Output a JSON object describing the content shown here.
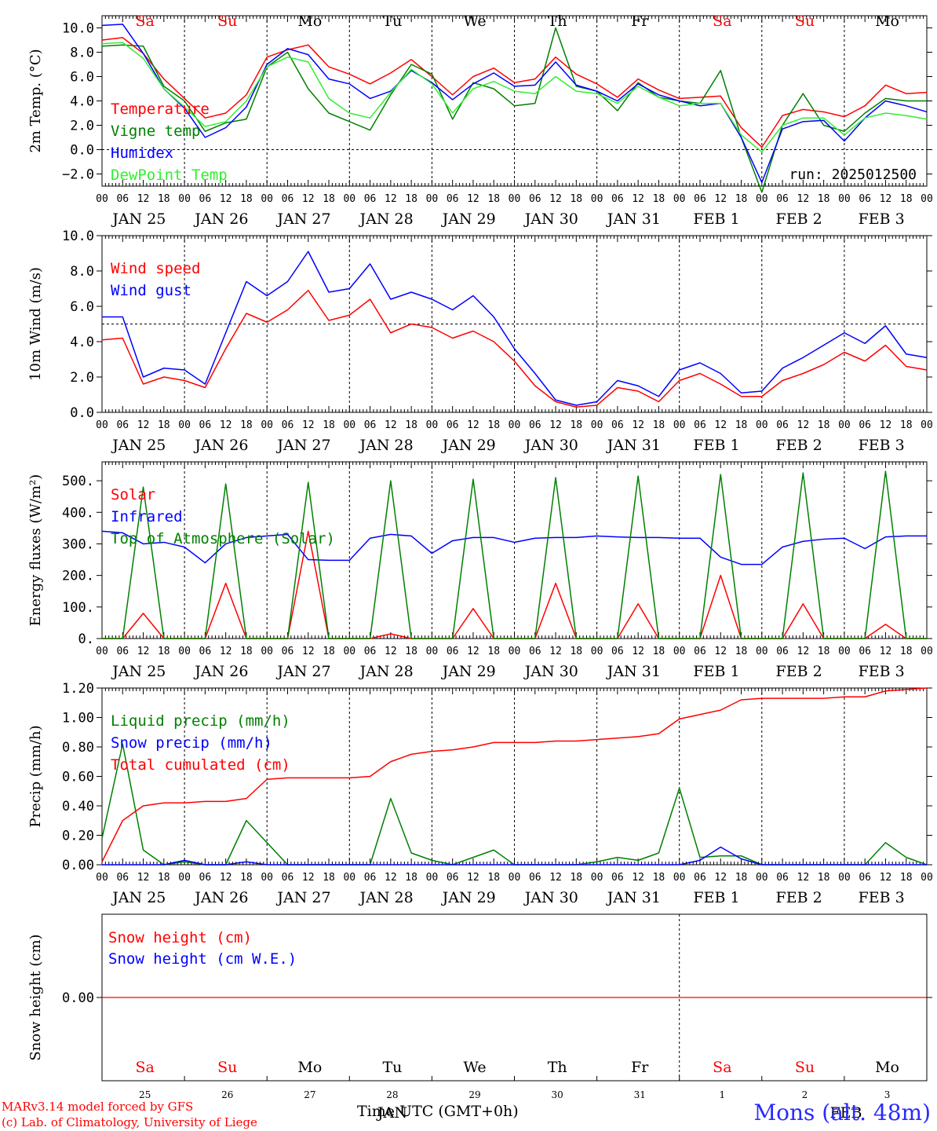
{
  "chart_data": [
    {
      "type": "line",
      "ylabel": "2m Temp. (°C)",
      "ylim": [
        -3,
        11
      ],
      "yticks": [
        "−2.0",
        "0.0",
        "2.0",
        "4.0",
        "6.0",
        "8.0",
        "10.0"
      ],
      "ytick_values": [
        -2,
        0,
        2,
        4,
        6,
        8,
        10
      ],
      "ref_line": 0,
      "annotation": "run: 2025012500",
      "x_hours": [
        0,
        6,
        12,
        18,
        24,
        30,
        36,
        42,
        48,
        54,
        60,
        66,
        72,
        78,
        84,
        90,
        96,
        102,
        108,
        114,
        120,
        126,
        132,
        138,
        144,
        150,
        156,
        162,
        168,
        174,
        180,
        186,
        192,
        198,
        204,
        210,
        216,
        222,
        228,
        234,
        240
      ],
      "series": [
        {
          "name": "Temperature",
          "color": "#ff0000",
          "values": [
            9.0,
            9.2,
            7.9,
            5.8,
            4.2,
            2.6,
            3.0,
            4.5,
            7.6,
            8.2,
            8.6,
            6.8,
            6.2,
            5.4,
            6.3,
            7.4,
            6.0,
            4.5,
            6.0,
            6.7,
            5.5,
            5.8,
            7.6,
            6.2,
            5.4,
            4.3,
            5.8,
            4.9,
            4.2,
            4.3,
            4.4,
            1.8,
            0.2,
            2.8,
            3.3,
            3.1,
            2.7,
            3.6,
            5.3,
            4.6,
            4.7
          ]
        },
        {
          "name": "Vigne temp",
          "color": "#008000",
          "values": [
            8.5,
            8.6,
            8.5,
            5.2,
            4.0,
            1.5,
            2.2,
            2.5,
            6.8,
            8.0,
            5.0,
            3.0,
            2.3,
            1.6,
            4.5,
            7.0,
            6.2,
            2.5,
            5.5,
            5.0,
            3.6,
            3.8,
            10.0,
            5.2,
            4.8,
            3.2,
            5.5,
            4.3,
            4.0,
            3.8,
            6.5,
            1.0,
            -3.5,
            2.0,
            4.6,
            2.0,
            1.5,
            3.0,
            4.2,
            4.0,
            4.0
          ]
        },
        {
          "name": "Humidex",
          "color": "#0000ff",
          "values": [
            10.2,
            10.3,
            7.9,
            5.0,
            3.4,
            1.0,
            1.8,
            3.5,
            7.0,
            8.3,
            7.8,
            5.8,
            5.4,
            4.2,
            4.8,
            6.5,
            5.5,
            4.1,
            5.4,
            6.3,
            5.2,
            5.3,
            7.2,
            5.3,
            4.8,
            4.0,
            5.4,
            4.5,
            4.0,
            3.6,
            3.8,
            1.0,
            -2.7,
            1.7,
            2.3,
            2.4,
            0.7,
            2.6,
            4.0,
            3.6,
            3.1
          ]
        },
        {
          "name": "DewPoint Temp",
          "color": "#33ee33",
          "values": [
            8.7,
            8.8,
            7.5,
            5.0,
            3.5,
            1.9,
            2.3,
            4.0,
            6.8,
            7.6,
            7.2,
            4.2,
            3.0,
            2.6,
            4.7,
            6.6,
            5.4,
            3.0,
            5.0,
            5.6,
            4.8,
            4.6,
            6.0,
            4.8,
            4.6,
            3.8,
            5.2,
            4.3,
            3.6,
            3.8,
            3.8,
            1.2,
            -0.2,
            2.0,
            2.6,
            2.6,
            1.2,
            2.6,
            3.0,
            2.8,
            2.5
          ]
        }
      ]
    },
    {
      "type": "line",
      "ylabel": "10m Wind (m/s)",
      "ylim": [
        0,
        10
      ],
      "yticks": [
        "0.0",
        "2.0",
        "4.0",
        "6.0",
        "8.0",
        "10.0"
      ],
      "ytick_values": [
        0,
        2,
        4,
        6,
        8,
        10
      ],
      "ref_line": 5,
      "x_hours": [
        0,
        6,
        12,
        18,
        24,
        30,
        36,
        42,
        48,
        54,
        60,
        66,
        72,
        78,
        84,
        90,
        96,
        102,
        108,
        114,
        120,
        126,
        132,
        138,
        144,
        150,
        156,
        162,
        168,
        174,
        180,
        186,
        192,
        198,
        204,
        210,
        216,
        222,
        228,
        234,
        240
      ],
      "series": [
        {
          "name": "Wind speed",
          "color": "#ff0000",
          "values": [
            4.1,
            4.2,
            1.6,
            2.0,
            1.8,
            1.4,
            3.6,
            5.6,
            5.1,
            5.8,
            6.9,
            5.2,
            5.5,
            6.4,
            4.5,
            5.0,
            4.8,
            4.2,
            4.6,
            4.0,
            2.9,
            1.5,
            0.6,
            0.3,
            0.4,
            1.4,
            1.2,
            0.6,
            1.8,
            2.2,
            1.6,
            0.9,
            0.9,
            1.8,
            2.2,
            2.7,
            3.4,
            2.9,
            3.8,
            2.6,
            2.4
          ]
        },
        {
          "name": "Wind gust",
          "color": "#0000ff",
          "values": [
            5.4,
            5.4,
            2.0,
            2.5,
            2.4,
            1.6,
            4.5,
            7.4,
            6.6,
            7.4,
            9.1,
            6.8,
            7.0,
            8.4,
            6.4,
            6.8,
            6.4,
            5.8,
            6.6,
            5.4,
            3.6,
            2.2,
            0.7,
            0.4,
            0.6,
            1.8,
            1.5,
            0.9,
            2.4,
            2.8,
            2.2,
            1.1,
            1.2,
            2.5,
            3.1,
            3.8,
            4.5,
            3.9,
            4.9,
            3.3,
            3.1
          ]
        }
      ]
    },
    {
      "type": "line",
      "ylabel": "Energy fluxes (W/m²)",
      "ylim": [
        0,
        560
      ],
      "yticks": [
        "0.",
        "100.",
        "200.",
        "300.",
        "400.",
        "500."
      ],
      "ytick_values": [
        0,
        100,
        200,
        300,
        400,
        500
      ],
      "x_hours": [
        0,
        6,
        12,
        18,
        24,
        30,
        36,
        42,
        48,
        54,
        60,
        66,
        72,
        78,
        84,
        90,
        96,
        102,
        108,
        114,
        120,
        126,
        132,
        138,
        144,
        150,
        156,
        162,
        168,
        174,
        180,
        186,
        192,
        198,
        204,
        210,
        216,
        222,
        228,
        234,
        240
      ],
      "series": [
        {
          "name": "Solar",
          "color": "#ff0000",
          "values": [
            0,
            0,
            80,
            0,
            0,
            0,
            175,
            0,
            0,
            0,
            340,
            0,
            0,
            0,
            15,
            0,
            0,
            0,
            95,
            0,
            0,
            0,
            175,
            0,
            0,
            0,
            110,
            0,
            0,
            0,
            200,
            0,
            0,
            0,
            110,
            0,
            0,
            0,
            45,
            0,
            0
          ]
        },
        {
          "name": "Infrared",
          "color": "#0000ff",
          "values": [
            340,
            335,
            300,
            305,
            290,
            240,
            300,
            320,
            325,
            330,
            250,
            248,
            248,
            318,
            330,
            325,
            270,
            310,
            320,
            320,
            305,
            318,
            320,
            320,
            325,
            322,
            320,
            320,
            318,
            318,
            258,
            235,
            235,
            290,
            308,
            315,
            318,
            285,
            322,
            325,
            325
          ]
        },
        {
          "name": "Top of Atmosphere (Solar)",
          "color": "#008000",
          "values": [
            0,
            0,
            480,
            0,
            0,
            0,
            490,
            0,
            0,
            0,
            495,
            0,
            0,
            0,
            500,
            0,
            0,
            0,
            505,
            0,
            0,
            0,
            510,
            0,
            0,
            0,
            515,
            0,
            0,
            0,
            520,
            0,
            0,
            0,
            525,
            0,
            0,
            0,
            530,
            0,
            0
          ]
        }
      ]
    },
    {
      "type": "line",
      "ylabel": "Precip (mm/h)",
      "ylim": [
        0,
        1.2
      ],
      "yticks": [
        "0.00",
        "0.20",
        "0.40",
        "0.60",
        "0.80",
        "1.00",
        "1.20"
      ],
      "ytick_values": [
        0,
        0.2,
        0.4,
        0.6,
        0.8,
        1.0,
        1.2
      ],
      "x_hours": [
        0,
        6,
        12,
        18,
        24,
        30,
        36,
        42,
        48,
        54,
        60,
        66,
        72,
        78,
        84,
        90,
        96,
        102,
        108,
        114,
        120,
        126,
        132,
        138,
        144,
        150,
        156,
        162,
        168,
        174,
        180,
        186,
        192,
        198,
        204,
        210,
        216,
        222,
        228,
        234,
        240
      ],
      "series": [
        {
          "name": "Liquid precip (mm/h)",
          "color": "#008000",
          "values": [
            0.18,
            0.82,
            0.1,
            0.0,
            0.02,
            0.0,
            0.0,
            0.3,
            0.15,
            0.0,
            0.0,
            0.0,
            0.0,
            0.0,
            0.45,
            0.08,
            0.03,
            0.0,
            0.05,
            0.1,
            0.0,
            0.0,
            0.0,
            0.0,
            0.02,
            0.05,
            0.03,
            0.08,
            0.52,
            0.05,
            0.06,
            0.06,
            0.0,
            0.0,
            0.0,
            0.0,
            0.0,
            0.0,
            0.15,
            0.05,
            0.0
          ]
        },
        {
          "name": "Snow precip (mm/h)",
          "color": "#0000ff",
          "values": [
            0.0,
            0.0,
            0.0,
            0.0,
            0.03,
            0.0,
            0.0,
            0.02,
            0.0,
            0.0,
            0.0,
            0.0,
            0.0,
            0.0,
            0.0,
            0.0,
            0.0,
            0.0,
            0.0,
            0.0,
            0.0,
            0.0,
            0.0,
            0.0,
            0.0,
            0.0,
            0.0,
            0.0,
            0.0,
            0.03,
            0.12,
            0.04,
            0.0,
            0.0,
            0.0,
            0.0,
            0.0,
            0.0,
            0.0,
            0.0,
            0.0
          ]
        },
        {
          "name": "Total cumulated (cm)",
          "color": "#ff0000",
          "values": [
            0.02,
            0.3,
            0.4,
            0.42,
            0.42,
            0.43,
            0.43,
            0.45,
            0.58,
            0.59,
            0.59,
            0.59,
            0.59,
            0.6,
            0.7,
            0.75,
            0.77,
            0.78,
            0.8,
            0.83,
            0.83,
            0.83,
            0.84,
            0.84,
            0.85,
            0.86,
            0.87,
            0.89,
            0.99,
            1.02,
            1.05,
            1.12,
            1.13,
            1.13,
            1.13,
            1.13,
            1.14,
            1.14,
            1.18,
            1.19,
            1.2
          ]
        }
      ]
    },
    {
      "type": "line",
      "ylabel": "Snow height (cm)",
      "yticks": [
        "0.00"
      ],
      "ytick_values": [
        0
      ],
      "series": [
        {
          "name": "Snow height (cm)",
          "color": "#ff0000",
          "values": [
            0,
            0
          ]
        },
        {
          "name": "Snow height (cm W.E.)",
          "color": "#0000ff",
          "values": []
        }
      ]
    }
  ],
  "x_axis": {
    "hour_labels": [
      "00",
      "06",
      "12",
      "18"
    ],
    "end_label": "00",
    "date_labels": [
      "JAN 25",
      "JAN 26",
      "JAN 27",
      "JAN 28",
      "JAN 29",
      "JAN 30",
      "JAN 31",
      "FEB  1",
      "FEB  2",
      "FEB  3"
    ],
    "day_names": [
      "Sa",
      "Su",
      "Mo",
      "Tu",
      "We",
      "Th",
      "Fr",
      "Sa",
      "Su",
      "Mo"
    ],
    "day_name_colors": [
      "#ff0000",
      "#ff0000",
      "#000000",
      "#000000",
      "#000000",
      "#000000",
      "#000000",
      "#ff0000",
      "#ff0000",
      "#000000"
    ],
    "bottom_day_numbers": [
      "25",
      "26",
      "27",
      "28",
      "29",
      "30",
      "31",
      "1",
      "2",
      "3"
    ],
    "bottom_month_jan": "JAN",
    "bottom_month_feb": "FEB",
    "title": "Time UTC (GMT+0h)"
  },
  "footer": {
    "line1": "MARv3.14 model forced by GFS",
    "line2": "(c) Lab. of Climatology, University of Liege",
    "station": "Mons (alt. 48m)"
  }
}
